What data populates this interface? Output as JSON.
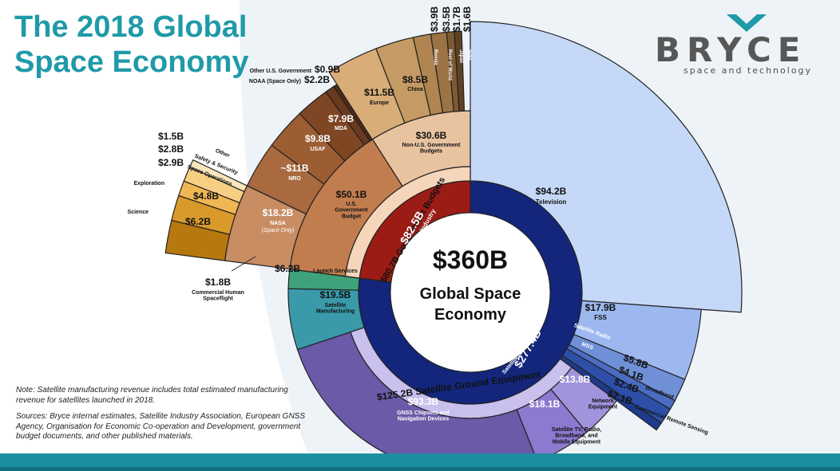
{
  "title": {
    "line1": "The 2018 Global",
    "line2": "Space Economy"
  },
  "logo": {
    "word": "BRYCE",
    "tagline": "space and technology"
  },
  "center": {
    "value": "$360B",
    "label_line1": "Global Space",
    "label_line2": "Economy"
  },
  "colors": {
    "accent": "#1f9aa8",
    "gov_dark": "#8a3a16",
    "gov_mid": "#c27d4f",
    "gov_light": "#e8c3a0",
    "industry_navy": "#13267c",
    "ground_purple": "#6a5aa7",
    "tv_blue": "#c5d8f7",
    "teal": "#3a9aaa",
    "launch_green": "#3fa27a"
  },
  "rings": {
    "inner": [
      {
        "label": "Non-Satellite Industry",
        "value": "$82.5B"
      },
      {
        "label": "Satellite Industry",
        "value": "$277.4B"
      }
    ],
    "middle": [
      {
        "label": "Government Budgets",
        "value": "$80.7B"
      },
      {
        "label": "Satellite Ground Equipment",
        "value": "$125.2B"
      }
    ],
    "segments": [
      {
        "value": "$50.1B",
        "label": "U.S. Government Budget"
      },
      {
        "value": "$30.6B",
        "label": "Non-U.S. Government Budgets"
      },
      {
        "value": "$94.2B",
        "label": "Television"
      },
      {
        "value": "$17.9B",
        "label": "FSS"
      },
      {
        "value": "$93.3B",
        "label": "GNSS Chipsets and Navigation Devices"
      },
      {
        "value": "$18.1B",
        "label": ""
      },
      {
        "value": "$13.8B",
        "label": ""
      },
      {
        "value": "$19.5B",
        "label": "Satellite Manufacturing"
      },
      {
        "value": "$6.2B",
        "label": "Launch Services"
      },
      {
        "value": "$18.2B",
        "label": "NASA",
        "sub": "(Space Only)"
      },
      {
        "value": "~$11B",
        "label": "NRO"
      },
      {
        "value": "$9.8B",
        "label": "USAF"
      },
      {
        "value": "$7.9B",
        "label": "MDA"
      },
      {
        "value": "$11.5B",
        "label": "Europe"
      },
      {
        "value": "$8.5B",
        "label": "China"
      },
      {
        "value": "$3.9B",
        "label": "Russia"
      },
      {
        "value": "$3.5B",
        "label": "Rest of World"
      },
      {
        "value": "$1.7B",
        "label": "Japan"
      },
      {
        "value": "$1.6B",
        "label": "India"
      },
      {
        "value": "$6.2B",
        "label": "Science"
      },
      {
        "value": "$4.8B",
        "label": "Exploration"
      },
      {
        "value": "$2.9B",
        "label": "Space Operations"
      },
      {
        "value": "$2.8B",
        "label": "Safety & Security"
      },
      {
        "value": "$1.5B",
        "label": "Other"
      },
      {
        "value": "$1.8B",
        "label": "Commercial Human Spaceflight"
      }
    ]
  },
  "callouts": {
    "other_us_gov": {
      "label": "Other U.S. Government",
      "value": "$0.9B"
    },
    "noaa": {
      "label": "NOAA (Space Only)",
      "value": "$2.2B"
    },
    "sat_radio": "Satellite Radio",
    "mss": "MSS",
    "broadband": {
      "label": "Broadband",
      "value": "$4.1B"
    },
    "commercial_remote": {
      "label": "Commercial Remote Sensing",
      "value": "$2.1B"
    },
    "sat_radio_value": "$5.8B",
    "mss_value": "$2.4B",
    "network_equipment": "Network Equipment",
    "sat_tv_equipment": "Satellite TV, Radio, Broadband, and Mobile Equipment"
  },
  "note": "Note: Satellite manufacturing revenue includes total estimated manufacturing revenue for satellites launched in 2018.",
  "sources": "Sources: Bryce internal estimates, Satellite Industry Association, European GNSS Agency, Organisation for Economic Co-operation and Development, government budget documents, and other published materials."
}
